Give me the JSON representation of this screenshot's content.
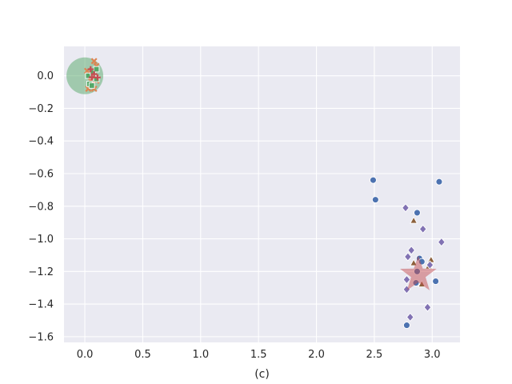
{
  "chart_data": {
    "type": "scatter",
    "title": "",
    "xlabel": "(c)",
    "ylabel": "",
    "xlim": [
      -0.18,
      3.24
    ],
    "ylim": [
      -1.635,
      0.18
    ],
    "x_ticks": [
      0.0,
      0.5,
      1.0,
      1.5,
      2.0,
      2.5,
      3.0
    ],
    "y_ticks": [
      0.0,
      -0.2,
      -0.4,
      -0.6,
      -0.8,
      -1.0,
      -1.2,
      -1.4,
      -1.6
    ],
    "x_tick_labels": [
      "0.0",
      "0.5",
      "1.0",
      "1.5",
      "2.0",
      "2.5",
      "3.0"
    ],
    "y_tick_labels": [
      "0.0",
      "−0.2",
      "−0.4",
      "−0.6",
      "−0.8",
      "−1.0",
      "−1.2",
      "−1.4",
      "−1.6"
    ],
    "grid": true,
    "background": "#eaeaf2",
    "series": [
      {
        "marker": "circle",
        "color": "#4c72b0",
        "points": [
          [
            2.49,
            -0.64
          ],
          [
            2.51,
            -0.76
          ],
          [
            3.06,
            -0.65
          ],
          [
            2.87,
            -0.84
          ],
          [
            2.89,
            -1.12
          ],
          [
            2.91,
            -1.14
          ],
          [
            2.87,
            -1.2
          ],
          [
            2.86,
            -1.27
          ],
          [
            3.03,
            -1.26
          ],
          [
            2.78,
            -1.53
          ]
        ]
      },
      {
        "marker": "triangle",
        "color": "#8c613c",
        "points": [
          [
            2.84,
            -0.89
          ],
          [
            2.84,
            -1.15
          ],
          [
            2.99,
            -1.13
          ],
          [
            2.97,
            -1.17
          ],
          [
            2.91,
            -1.28
          ]
        ]
      },
      {
        "marker": "diamond",
        "color": "#8172b3",
        "points": [
          [
            2.77,
            -0.81
          ],
          [
            2.92,
            -0.94
          ],
          [
            3.08,
            -1.02
          ],
          [
            2.82,
            -1.07
          ],
          [
            2.79,
            -1.11
          ],
          [
            2.98,
            -1.16
          ],
          [
            2.78,
            -1.25
          ],
          [
            2.78,
            -1.31
          ],
          [
            2.96,
            -1.42
          ],
          [
            2.81,
            -1.48
          ]
        ]
      },
      {
        "marker": "x",
        "color": "#dd8452",
        "points": [
          [
            0.08,
            0.09
          ],
          [
            0.1,
            0.06
          ],
          [
            0.06,
            0.01
          ],
          [
            0.05,
            -0.03
          ],
          [
            0.03,
            -0.08
          ],
          [
            0.08,
            -0.08
          ],
          [
            0.1,
            -0.03
          ],
          [
            0.02,
            0.03
          ]
        ]
      },
      {
        "marker": "square",
        "color": "#55a868",
        "points": [
          [
            0.03,
            0.0
          ],
          [
            0.1,
            -0.02
          ],
          [
            0.07,
            0.02
          ],
          [
            0.04,
            -0.05
          ],
          [
            0.1,
            0.04
          ],
          [
            0.06,
            -0.06
          ]
        ]
      },
      {
        "marker": "plus",
        "color": "#c44e52",
        "points": [
          [
            0.08,
            0.01
          ],
          [
            0.05,
            0.04
          ],
          [
            0.11,
            -0.01
          ],
          [
            0.06,
            -0.01
          ]
        ]
      }
    ],
    "centroids": [
      {
        "marker": "big-circle",
        "color": "#55a868",
        "x": 0.0,
        "y": 0.0
      },
      {
        "marker": "big-star",
        "color": "#c44e52",
        "x": 2.88,
        "y": -1.22
      }
    ]
  }
}
